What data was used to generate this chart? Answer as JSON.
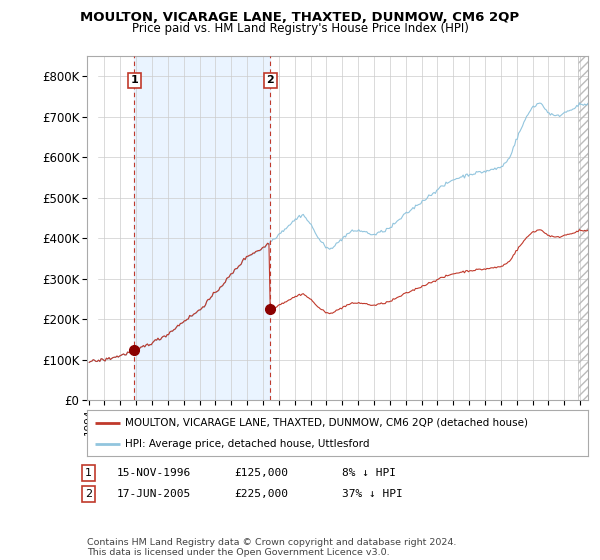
{
  "title": "MOULTON, VICARAGE LANE, THAXTED, DUNMOW, CM6 2QP",
  "subtitle": "Price paid vs. HM Land Registry's House Price Index (HPI)",
  "ylim": [
    0,
    850000
  ],
  "yticks": [
    0,
    100000,
    200000,
    300000,
    400000,
    500000,
    600000,
    700000,
    800000
  ],
  "ytick_labels": [
    "£0",
    "£100K",
    "£200K",
    "£300K",
    "£400K",
    "£500K",
    "£600K",
    "£700K",
    "£800K"
  ],
  "sale1_year": 1996,
  "sale1_month": 11,
  "sale1_price": 125000,
  "sale2_year": 2005,
  "sale2_month": 6,
  "sale2_price": 225000,
  "line_color_hpi": "#92c5de",
  "line_color_price": "#c0392b",
  "dot_color": "#8b0000",
  "vline_color": "#c0392b",
  "shade_color": "#ddeeff",
  "hatch_color": "#cccccc",
  "legend_price_label": "MOULTON, VICARAGE LANE, THAXTED, DUNMOW, CM6 2QP (detached house)",
  "legend_hpi_label": "HPI: Average price, detached house, Uttlesford",
  "table_row1": [
    "1",
    "15-NOV-1996",
    "£125,000",
    "8% ↓ HPI"
  ],
  "table_row2": [
    "2",
    "17-JUN-2005",
    "£225,000",
    "37% ↓ HPI"
  ],
  "footnote": "Contains HM Land Registry data © Crown copyright and database right 2024.\nThis data is licensed under the Open Government Licence v3.0.",
  "bg_color": "#ffffff",
  "plot_bg_color": "#ffffff",
  "grid_color": "#cccccc"
}
